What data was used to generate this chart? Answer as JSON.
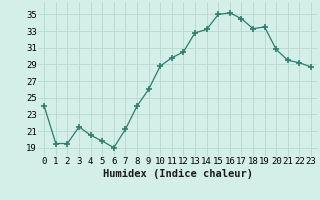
{
  "x": [
    0,
    1,
    2,
    3,
    4,
    5,
    6,
    7,
    8,
    9,
    10,
    11,
    12,
    13,
    14,
    15,
    16,
    17,
    18,
    19,
    20,
    21,
    22,
    23
  ],
  "y": [
    24,
    19.5,
    19.5,
    21.5,
    20.5,
    19.8,
    19,
    21.2,
    24.0,
    26.0,
    28.8,
    29.8,
    30.5,
    32.8,
    33.2,
    35.0,
    35.2,
    34.5,
    33.3,
    33.5,
    30.8,
    29.5,
    29.2,
    28.7
  ],
  "line_color": "#2e7d6e",
  "marker_color": "#2e7d6e",
  "bg_color": "#d4eee8",
  "grid_color": "#b8d8d0",
  "xlabel": "Humidex (Indice chaleur)",
  "ylabel_ticks": [
    19,
    21,
    23,
    25,
    27,
    29,
    31,
    33,
    35
  ],
  "ylim": [
    18.0,
    36.5
  ],
  "xlim": [
    -0.5,
    23.5
  ],
  "xtick_labels": [
    "0",
    "1",
    "2",
    "3",
    "4",
    "5",
    "6",
    "7",
    "8",
    "9",
    "10",
    "11",
    "12",
    "13",
    "14",
    "15",
    "16",
    "17",
    "18",
    "19",
    "20",
    "21",
    "22",
    "23"
  ],
  "xlabel_fontsize": 7.5,
  "tick_fontsize": 6.5
}
